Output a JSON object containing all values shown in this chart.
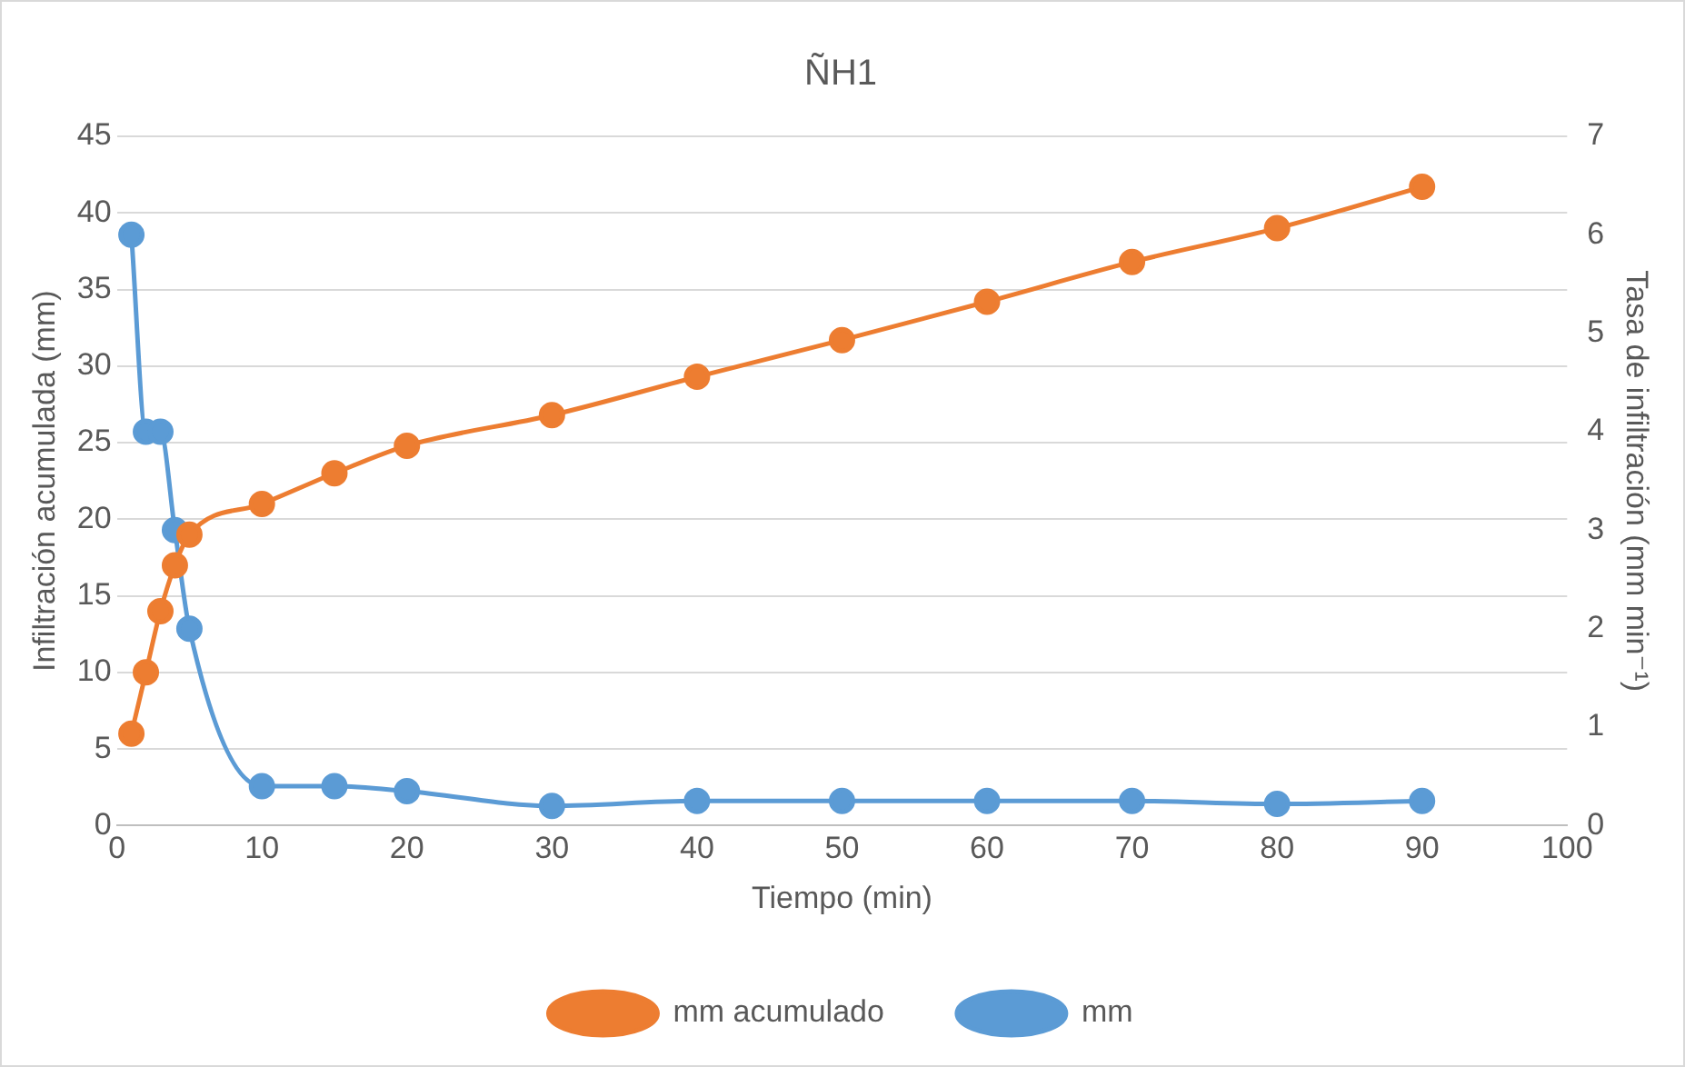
{
  "chart_data": {
    "type": "line",
    "title": "ÑH1",
    "xlabel": "Tiempo (min)",
    "ylabel": "Infiltración acumulada (mm)",
    "y2label": "Tasa de infiltración (mm min⁻¹)",
    "x": [
      1,
      2,
      3,
      4,
      5,
      10,
      15,
      20,
      30,
      40,
      50,
      60,
      70,
      80,
      90
    ],
    "series": [
      {
        "name": "mm acumulado",
        "color": "#ed7d31",
        "values": [
          6.0,
          10.0,
          14.0,
          17.0,
          19.0,
          21.0,
          23.0,
          24.8,
          26.8,
          29.3,
          31.7,
          34.2,
          36.8,
          39.0,
          41.7
        ]
      },
      {
        "name": "mm",
        "color": "#5b9bd5",
        "axis": "y2",
        "values": [
          6.0,
          4.0,
          4.0,
          3.0,
          2.0,
          0.4,
          0.4,
          0.35,
          0.2,
          0.25,
          0.25,
          0.25,
          0.25,
          0.22,
          0.25
        ]
      }
    ],
    "xlim": [
      0,
      100
    ],
    "xticks": [
      0,
      10,
      20,
      30,
      40,
      50,
      60,
      70,
      80,
      90,
      100
    ],
    "ylim": [
      0,
      45
    ],
    "yticks": [
      0,
      5,
      10,
      15,
      20,
      25,
      30,
      35,
      40,
      45
    ],
    "y2lim": [
      0,
      7
    ],
    "y2ticks": [
      0,
      1,
      2,
      3,
      4,
      5,
      6,
      7
    ],
    "grid": "y",
    "legend": "bottom",
    "marker": "circle",
    "line_style": "solid"
  }
}
